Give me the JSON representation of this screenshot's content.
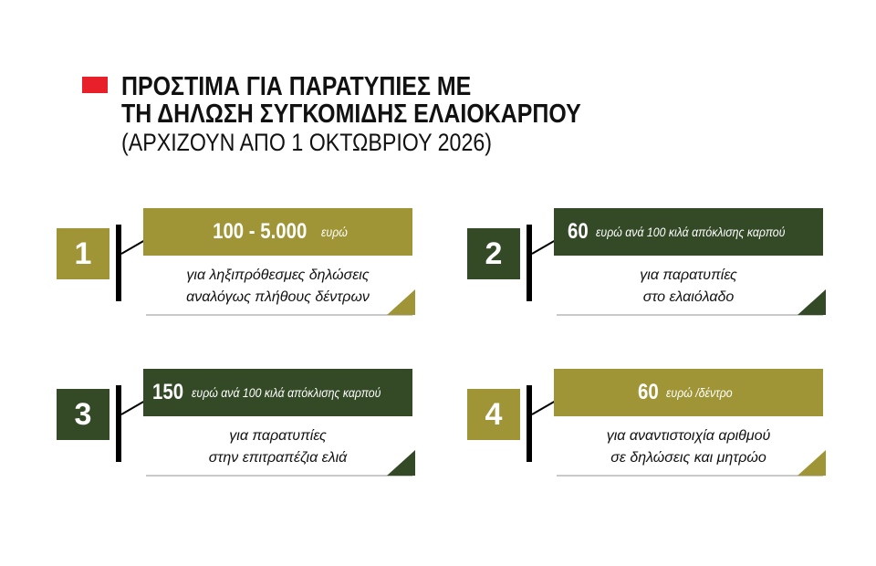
{
  "title": {
    "line1": "ΠΡΟΣΤΙΜΑ ΓΙΑ ΠΑΡΑΤΥΠΙΕΣ ΜΕ",
    "line2": "ΤΗ ΔΗΛΩΣΗ ΣΥΓΚΟΜΙΔΗΣ ΕΛΑΙΟΚΑΡΠΟΥ",
    "subtitle": "(ΑΡΧΙΖΟΥΝ ΑΠΟ 1 ΟΚΤΩΒΡΙΟΥ 2026)"
  },
  "colors": {
    "accent": "#e8202a",
    "olive": "#a09536",
    "dark_green": "#344a27"
  },
  "items": [
    {
      "number": "1",
      "amount": "100 - 5.000",
      "unit": "ευρώ",
      "desc1": "για ληξιπρόθεσμες δηλώσεις",
      "desc2": "αναλόγως πλήθους δέντρων",
      "color": "#a09536"
    },
    {
      "number": "2",
      "amount": "60",
      "unit": "ευρώ ανά 100 κιλά απόκλισης καρπού",
      "desc1": "για παρατυπίες",
      "desc2": "στο ελαιόλαδο",
      "color": "#344a27"
    },
    {
      "number": "3",
      "amount": "150",
      "unit": "ευρώ ανά 100 κιλά απόκλισης καρπού",
      "desc1": "για παρατυπίες",
      "desc2": "στην επιτραπέζια ελιά",
      "color": "#344a27"
    },
    {
      "number": "4",
      "amount": "60",
      "unit": "ευρώ /δέντρο",
      "desc1": "για αναντιστοιχία αριθμού",
      "desc2": "σε δηλώσεις και μητρώο",
      "color": "#a09536"
    }
  ]
}
